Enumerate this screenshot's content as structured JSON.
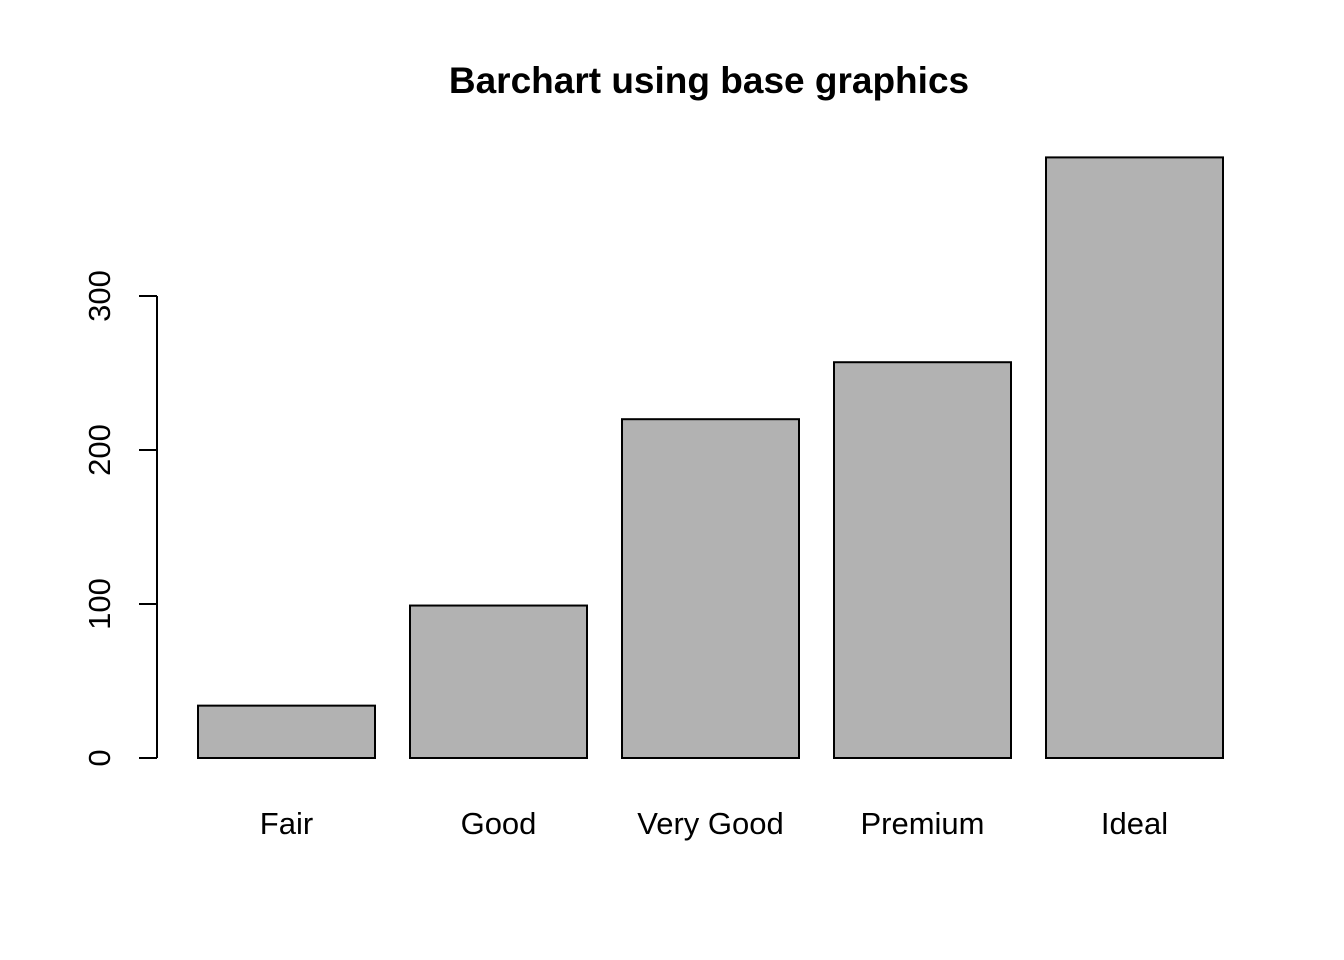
{
  "chart_data": {
    "type": "bar",
    "title": "Barchart using base graphics",
    "xlabel": "",
    "ylabel": "",
    "categories": [
      "Fair",
      "Good",
      "Very Good",
      "Premium",
      "Ideal"
    ],
    "values": [
      34,
      99,
      220,
      257,
      390
    ],
    "ylim": [
      0,
      390
    ],
    "yticks": [
      0,
      100,
      200,
      300
    ],
    "grid": false,
    "bar_color": "#b2b2b2",
    "edge_color": "#000000"
  }
}
